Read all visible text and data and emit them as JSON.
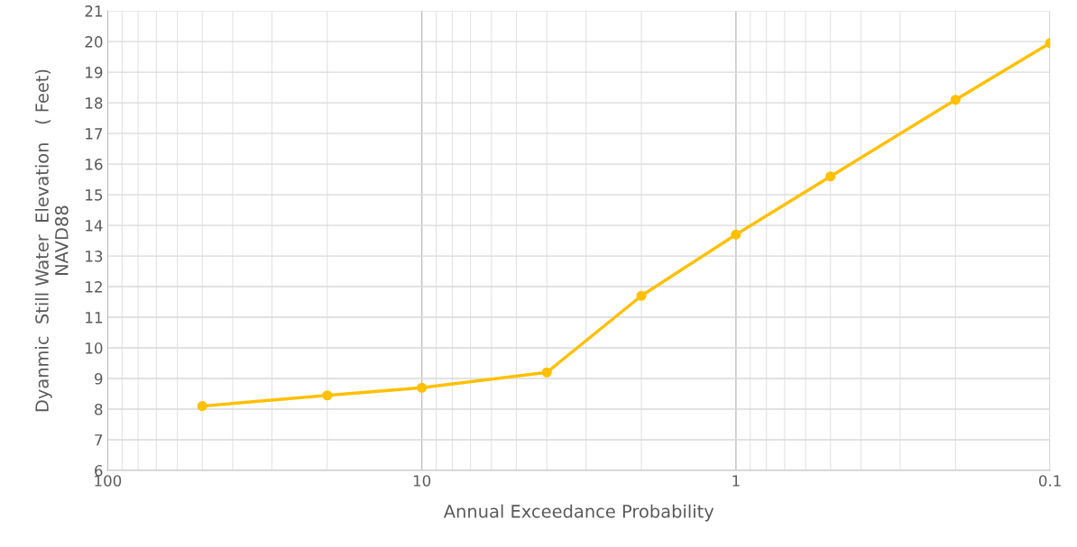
{
  "chart_data": {
    "type": "line",
    "xlabel": "Annual Exceedance Probability",
    "ylabel": "Dyanmic  Still Water  Elevation   ( Feet)\nNAVD88",
    "x": [
      50,
      20,
      10,
      4,
      2,
      1,
      0.5,
      0.2,
      0.1
    ],
    "series": [
      {
        "color": "#ffc000",
        "values": [
          8.1,
          8.45,
          8.7,
          9.2,
          11.7,
          13.7,
          15.6,
          18.1,
          19.95
        ]
      }
    ],
    "log": "x",
    "xlim": [
      100,
      0.1
    ],
    "xticks": [
      100,
      10,
      1,
      0.1
    ],
    "ylim": [
      6,
      21
    ],
    "yticks": [
      6,
      7,
      8,
      9,
      10,
      11,
      12,
      13,
      14,
      15,
      16,
      17,
      18,
      19,
      20,
      21
    ],
    "grid": true,
    "marker": "circle",
    "line_style": "solid"
  }
}
